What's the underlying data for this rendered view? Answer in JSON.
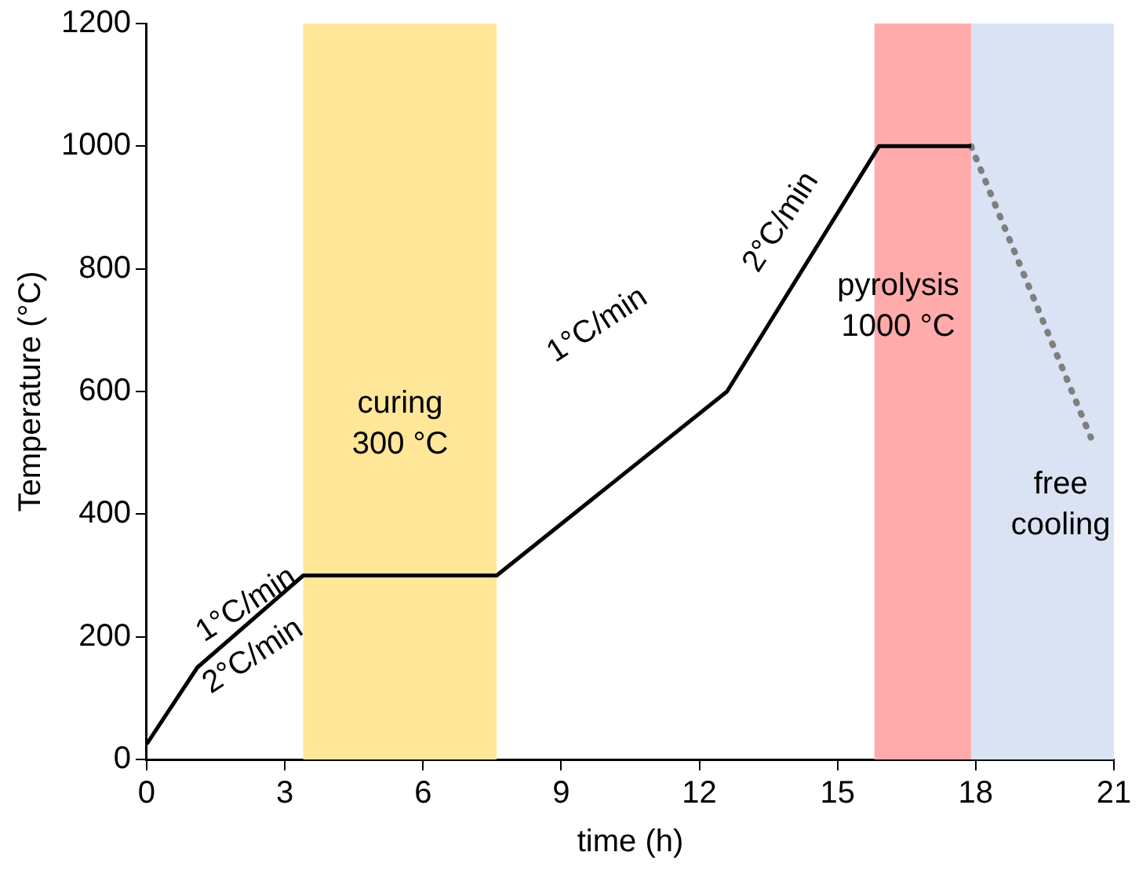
{
  "chart_data": {
    "type": "line",
    "xlabel": "time (h)",
    "ylabel": "Temperature (°C)",
    "xlim": [
      0,
      21
    ],
    "xticks": [
      0,
      3,
      6,
      9,
      12,
      15,
      18,
      21
    ],
    "ylim": [
      0,
      1200
    ],
    "yticks": [
      0,
      200,
      400,
      600,
      800,
      1000,
      1200
    ],
    "grid": false,
    "legend": false,
    "marker": "none",
    "series": [
      {
        "color": "#000000",
        "line_style": "solid",
        "x": [
          0,
          1.1,
          3.4,
          7.6,
          12.6,
          15.9,
          17.9
        ],
        "values": [
          25,
          150,
          300,
          300,
          600,
          1000,
          1000
        ]
      },
      {
        "color": "#7f7f7f",
        "line_style": "dotted",
        "x": [
          17.9,
          20.5
        ],
        "values": [
          1000,
          525
        ]
      }
    ],
    "bands": [
      {
        "axis": "x",
        "from": 3.4,
        "to": 7.6,
        "color": "#ffe699",
        "label": "curing 300 °C"
      },
      {
        "axis": "x",
        "from": 15.8,
        "to": 17.9,
        "color": "#ffabab",
        "label": "pyrolysis 1000 °C"
      },
      {
        "axis": "x",
        "from": 17.9,
        "to": 21,
        "color": "#dae3f3",
        "label": "free cooling"
      }
    ],
    "annotations": [
      "1°C/min",
      "2°C/min",
      "1°C/min",
      "2°C/min"
    ]
  }
}
